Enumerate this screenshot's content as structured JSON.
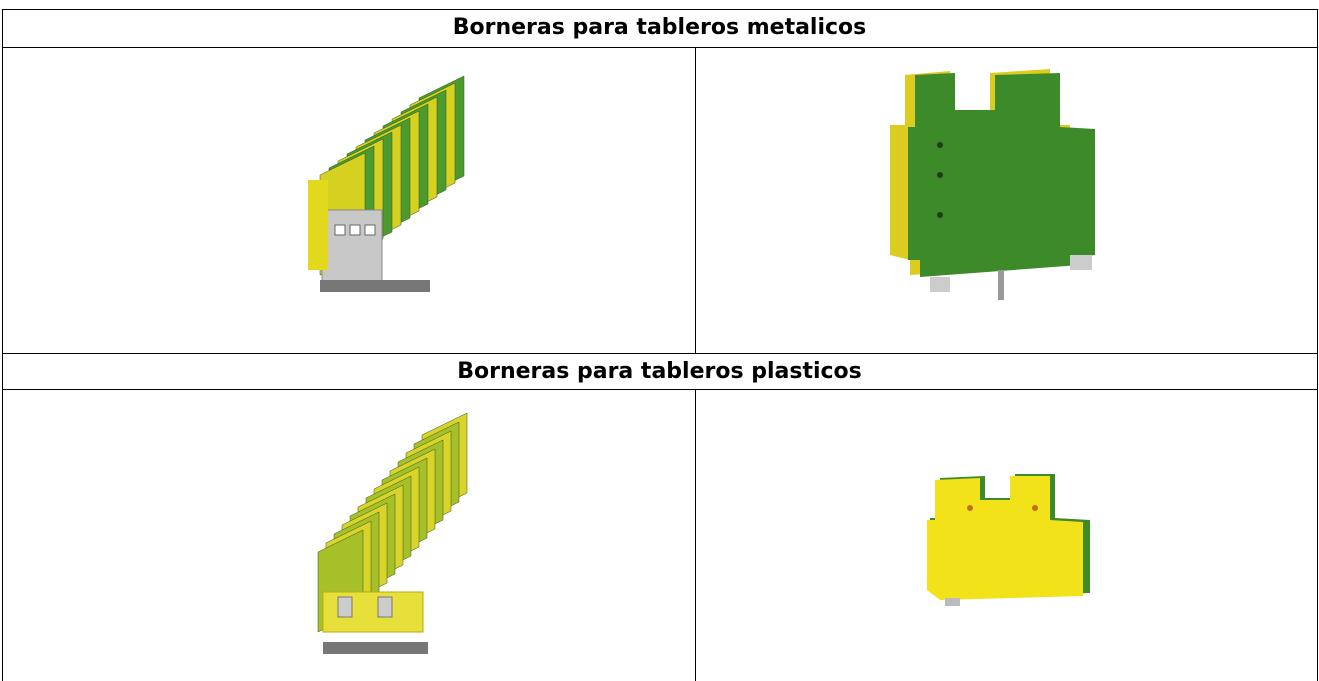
{
  "sections": [
    {
      "title": "Borneras para tableros metalicos"
    },
    {
      "title": "Borneras para tableros plasticos"
    }
  ]
}
